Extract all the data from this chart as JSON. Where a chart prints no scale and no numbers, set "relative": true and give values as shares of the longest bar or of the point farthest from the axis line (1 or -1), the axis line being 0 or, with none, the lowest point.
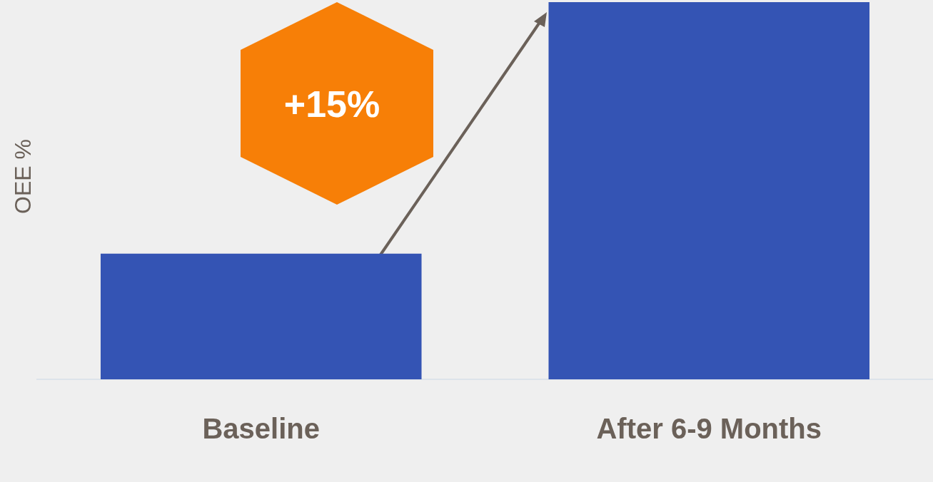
{
  "chart_data": {
    "type": "bar",
    "ylabel": "OEE %",
    "categories": [
      "Baseline",
      "After 6-9 Months"
    ],
    "values": [
      0.333,
      1
    ],
    "color": "#3454b4",
    "relative": true,
    "grid": false,
    "legend": false,
    "annotations": [
      "+15%"
    ]
  }
}
